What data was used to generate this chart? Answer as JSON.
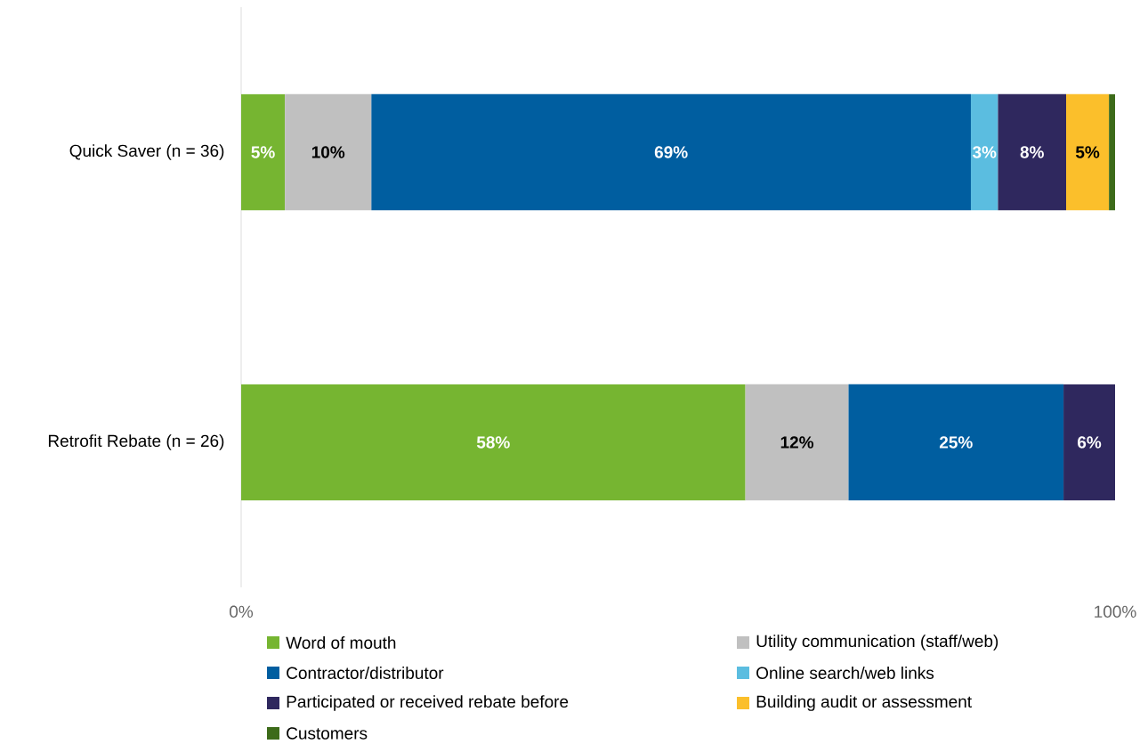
{
  "chart_data": {
    "type": "bar",
    "orientation": "horizontal",
    "stacked": true,
    "categories": [
      "Quick Saver (n = 36)",
      "Retrofit Rebate (n = 26)"
    ],
    "series": [
      {
        "name": "Word of mouth",
        "color": "#76b531",
        "values": [
          5,
          57.7
        ],
        "value_labels": [
          "5%",
          "58%"
        ]
      },
      {
        "name": "Utility communication (staff/web)",
        "color": "#c0c0c0",
        "values": [
          9.9,
          11.8
        ],
        "value_labels": [
          "10%",
          "12%"
        ]
      },
      {
        "name": "Contractor/distributor",
        "color": "#005ea0",
        "values": [
          68.6,
          24.6
        ],
        "value_labels": [
          "69%",
          "25%"
        ]
      },
      {
        "name": "Online search/web links",
        "color": "#5bbde0",
        "values": [
          3.1,
          null
        ],
        "value_labels": [
          "3%",
          null
        ]
      },
      {
        "name": "Participated or received rebate before",
        "color": "#2f285e",
        "values": [
          7.8,
          5.9
        ],
        "value_labels": [
          "8%",
          "6%"
        ]
      },
      {
        "name": "Building audit or assessment",
        "color": "#fbbf2b",
        "values": [
          4.9,
          null
        ],
        "value_labels": [
          "5%",
          null
        ]
      },
      {
        "name": "Customers",
        "color": "#3d6b1a",
        "values": [
          0.7,
          null
        ],
        "value_labels": [
          null,
          null
        ]
      }
    ],
    "xlim": [
      0,
      100
    ],
    "xticks": [
      {
        "value": 0,
        "label": "0%"
      },
      {
        "value": 100,
        "label": "100%"
      }
    ],
    "legend": "bottom",
    "grid": false
  }
}
